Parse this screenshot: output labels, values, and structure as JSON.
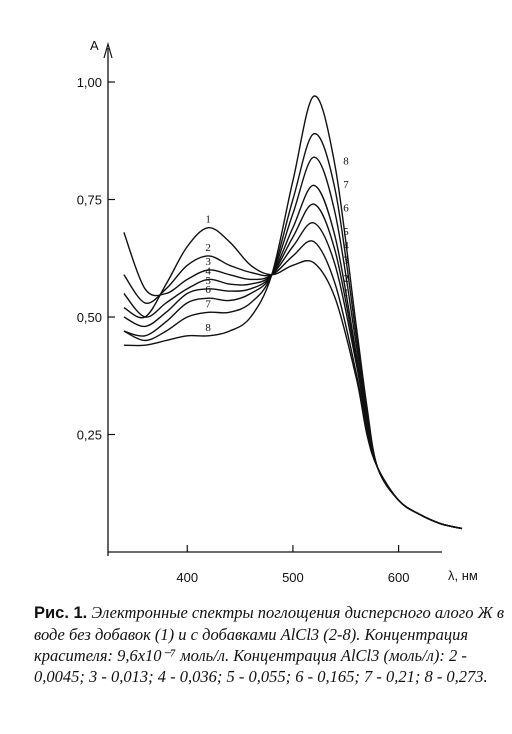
{
  "caption": {
    "lead": "Рис. 1.",
    "text": "Электронные спектры поглощения дисперсного алого Ж в воде без добавок (1) и с добавками AlCl3 (2-8). Концентрация красителя: 9,6x10⁻⁷ моль/л. Концентрация AlCl3 (моль/л): 2 - 0,0045; 3 - 0,013; 4 - 0,036; 5 - 0,055; 6 - 0,165; 7 - 0,21; 8 - 0,273."
  },
  "chart_data": {
    "type": "line",
    "title": "",
    "ylabel": "A",
    "xlabel": "λ, нм",
    "xlim": [
      325,
      660
    ],
    "ylim": [
      0,
      1.0
    ],
    "x_ticks": [
      400,
      500,
      600
    ],
    "x_tick_labels": [
      "400",
      "500",
      "600"
    ],
    "y_ticks": [
      0.25,
      0.5,
      0.75,
      1.0
    ],
    "y_tick_labels": [
      "0,25",
      "0,50",
      "0,75",
      "1,00"
    ],
    "grid": false,
    "series": [
      {
        "name": "1",
        "x": [
          340,
          360,
          380,
          400,
          420,
          440,
          460,
          480,
          500,
          520,
          540,
          560,
          570,
          580,
          600,
          620,
          640,
          660
        ],
        "y": [
          0.52,
          0.5,
          0.57,
          0.65,
          0.69,
          0.66,
          0.61,
          0.59,
          0.61,
          0.615,
          0.54,
          0.37,
          0.25,
          0.18,
          0.11,
          0.08,
          0.06,
          0.05
        ]
      },
      {
        "name": "2",
        "x": [
          340,
          360,
          380,
          400,
          420,
          440,
          460,
          480,
          500,
          520,
          540,
          560,
          570,
          580,
          600,
          620,
          640,
          660
        ],
        "y": [
          0.59,
          0.53,
          0.56,
          0.61,
          0.63,
          0.61,
          0.595,
          0.59,
          0.63,
          0.66,
          0.57,
          0.38,
          0.26,
          0.18,
          0.11,
          0.08,
          0.06,
          0.05
        ]
      },
      {
        "name": "3",
        "x": [
          340,
          360,
          380,
          400,
          420,
          440,
          460,
          480,
          500,
          520,
          540,
          560,
          570,
          580,
          600,
          620,
          640,
          660
        ],
        "y": [
          0.68,
          0.56,
          0.55,
          0.58,
          0.6,
          0.59,
          0.58,
          0.59,
          0.65,
          0.7,
          0.61,
          0.4,
          0.27,
          0.18,
          0.11,
          0.08,
          0.06,
          0.05
        ]
      },
      {
        "name": "4",
        "x": [
          340,
          360,
          380,
          400,
          420,
          440,
          460,
          480,
          500,
          520,
          540,
          560,
          570,
          580,
          600,
          620,
          640,
          660
        ],
        "y": [
          0.55,
          0.5,
          0.53,
          0.56,
          0.58,
          0.57,
          0.57,
          0.59,
          0.67,
          0.74,
          0.64,
          0.41,
          0.28,
          0.18,
          0.11,
          0.08,
          0.06,
          0.05
        ]
      },
      {
        "name": "5",
        "x": [
          340,
          360,
          380,
          400,
          420,
          440,
          460,
          480,
          500,
          520,
          540,
          560,
          570,
          580,
          600,
          620,
          640,
          660
        ],
        "y": [
          0.5,
          0.48,
          0.51,
          0.55,
          0.56,
          0.555,
          0.56,
          0.59,
          0.69,
          0.78,
          0.67,
          0.42,
          0.28,
          0.18,
          0.11,
          0.08,
          0.06,
          0.05
        ]
      },
      {
        "name": "6",
        "x": [
          340,
          360,
          380,
          400,
          420,
          440,
          460,
          480,
          500,
          520,
          540,
          560,
          570,
          580,
          600,
          620,
          640,
          660
        ],
        "y": [
          0.47,
          0.46,
          0.49,
          0.53,
          0.54,
          0.535,
          0.55,
          0.59,
          0.72,
          0.84,
          0.72,
          0.44,
          0.29,
          0.18,
          0.11,
          0.08,
          0.06,
          0.05
        ]
      },
      {
        "name": "7",
        "x": [
          340,
          360,
          380,
          400,
          420,
          440,
          460,
          480,
          500,
          520,
          540,
          560,
          570,
          580,
          600,
          620,
          640,
          660
        ],
        "y": [
          0.47,
          0.45,
          0.47,
          0.5,
          0.51,
          0.51,
          0.53,
          0.59,
          0.75,
          0.89,
          0.77,
          0.46,
          0.3,
          0.18,
          0.11,
          0.08,
          0.06,
          0.05
        ]
      },
      {
        "name": "8",
        "x": [
          340,
          360,
          380,
          400,
          420,
          440,
          460,
          480,
          500,
          520,
          540,
          560,
          570,
          580,
          600,
          620,
          640,
          660
        ],
        "y": [
          0.44,
          0.44,
          0.45,
          0.46,
          0.46,
          0.47,
          0.5,
          0.59,
          0.79,
          0.97,
          0.82,
          0.48,
          0.31,
          0.18,
          0.11,
          0.08,
          0.06,
          0.05
        ]
      }
    ]
  }
}
